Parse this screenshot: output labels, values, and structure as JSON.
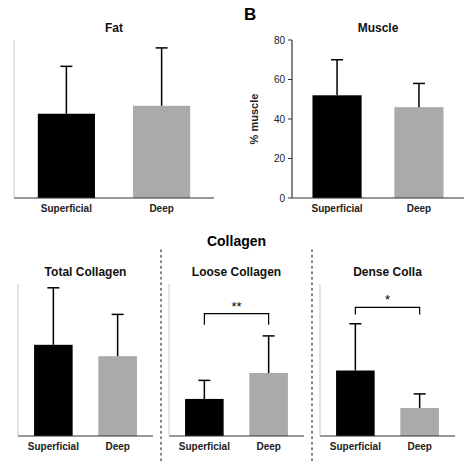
{
  "chart_data": [
    {
      "type": "bar",
      "title": "Fat",
      "categories": [
        "Superficial",
        "Deep"
      ],
      "values": [
        32,
        35
      ],
      "errors": [
        18,
        22
      ],
      "colors": [
        "#000000",
        "#aaaaaa"
      ],
      "ylim": [
        0,
        60
      ],
      "tick_labels": "x"
    },
    {
      "type": "bar",
      "title": "Muscle",
      "ylabel": "% muscle",
      "categories": [
        "Superficial",
        "Deep"
      ],
      "values": [
        52,
        46
      ],
      "errors": [
        18,
        12
      ],
      "colors": [
        "#000000",
        "#aaaaaa"
      ],
      "ylim": [
        0,
        80
      ],
      "yticks": [
        0,
        20,
        40,
        60,
        80
      ],
      "annotations": [
        {
          "text": "B"
        }
      ]
    },
    {
      "type": "bar",
      "title": "Total Collagen",
      "categories": [
        "Superficial",
        "Deep"
      ],
      "values": [
        48,
        42
      ],
      "errors": [
        30,
        22
      ],
      "colors": [
        "#000000",
        "#aaaaaa"
      ],
      "ylim": [
        0,
        80
      ],
      "tick_labels": "x",
      "annotations": [
        {
          "text": "Collagen"
        }
      ]
    },
    {
      "type": "bar",
      "title": "Loose Collagen",
      "categories": [
        "Superficial",
        "Deep"
      ],
      "values": [
        10,
        17
      ],
      "errors": [
        5,
        10
      ],
      "colors": [
        "#000000",
        "#aaaaaa"
      ],
      "ylim": [
        0,
        41
      ],
      "tick_labels": "x",
      "annotations": [
        {
          "text": "**",
          "y": 30,
          "height": 3
        }
      ]
    },
    {
      "type": "bar",
      "title": "Dense Colla",
      "categories": [
        "Superficial",
        "Deep"
      ],
      "values": [
        28,
        12
      ],
      "errors": [
        20,
        6
      ],
      "colors": [
        "#000000",
        "#aaaaaa"
      ],
      "ylim": [
        0,
        65
      ],
      "tick_labels": "x",
      "annotations": [
        {
          "text": "*",
          "y": 52,
          "height": 3
        }
      ]
    }
  ]
}
